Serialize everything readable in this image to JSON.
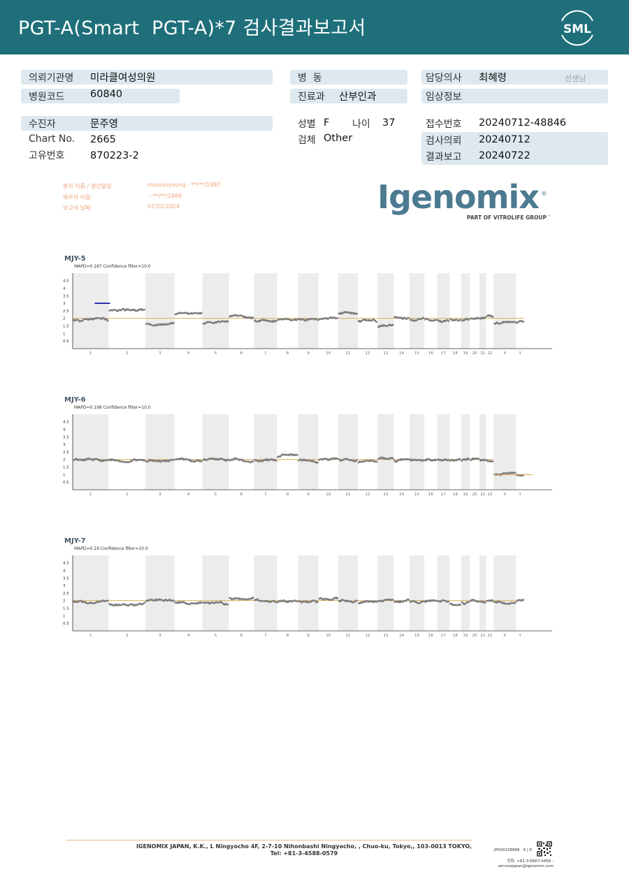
{
  "header": {
    "title": "PGT-A(Smart  PGT-A)*7 검사결과보고서",
    "logo_text": "SML",
    "bg_color": "#1e6f7a"
  },
  "info": {
    "institution_label": "의뢰기관명",
    "institution_value": "미라클여성의원",
    "hospital_code_label": "병원코드",
    "hospital_code_value": "60840",
    "ward_label": "병  동",
    "ward_value": "",
    "department_label": "진료과",
    "department_value": "산부인과",
    "doctor_label": "담당의사",
    "doctor_value": "최혜령",
    "doctor_suffix": "선생님",
    "clinical_label": "임상정보",
    "clinical_value": "",
    "patient_label": "수진자",
    "patient_value": "문주영",
    "chart_no_label": "Chart No.",
    "chart_no_value": "2665",
    "unique_no_label": "고유번호",
    "unique_no_value": "870223-2",
    "sex_label": "성별",
    "sex_value": "F",
    "age_label": "나이",
    "age_value": "37",
    "specimen_label": "검체",
    "specimen_value": "Other",
    "receipt_label": "접수번호",
    "receipt_value": "20240712-48846",
    "request_label": "검사의뢰",
    "request_value": "20240712",
    "report_label": "결과보고",
    "report_value": "20240722"
  },
  "stamp": {
    "patient_name_label": "환자 이름 / 생년월일",
    "partner_name_label": "배우자 이름:",
    "report_date_label": "보고서 날짜:",
    "patient_name_value": "moonjuyoung - **/**/1987",
    "partner_name_value": "- **/**/1988",
    "report_date_value": "07/22/2024"
  },
  "igenomix": {
    "brand": "Igenomix",
    "registered": "®",
    "tagline": "PART OF VITROLIFE GROUP",
    "trademark": "™"
  },
  "charts": {
    "y_ticks": [
      "4.5",
      "4",
      "3.5",
      "3",
      "2.5",
      "2",
      "1.5",
      "1",
      "0.5"
    ],
    "chromosomes": [
      "1",
      "2",
      "3",
      "4",
      "5",
      "6",
      "7",
      "8",
      "9",
      "10",
      "11",
      "12",
      "13",
      "14",
      "15",
      "16",
      "17",
      "18",
      "19",
      "20",
      "21",
      "22",
      "X",
      "Y"
    ],
    "color_points": "#7d7d7d",
    "color_baseline": "#d9a441",
    "color_gain": "#1a1aa8",
    "color_shade": "#ececec",
    "samples": [
      {
        "name": "MJY-5",
        "subtitle": "MAPD=0.187 Confidence filter=10.0",
        "levels": [
          1.9,
          2.5,
          1.65,
          2.25,
          1.7,
          2.1,
          1.85,
          1.9,
          1.95,
          1.95,
          2.3,
          1.8,
          1.45,
          2.1,
          1.9,
          1.95,
          1.85,
          1.95,
          1.85,
          1.95,
          1.95,
          2.2,
          1.65,
          1.7
        ]
      },
      {
        "name": "MJY-6",
        "subtitle": "MAPD=0.198 Confidence filter=10.0",
        "levels": [
          2.0,
          1.95,
          1.9,
          2.0,
          1.95,
          1.95,
          2.0,
          2.2,
          1.9,
          1.95,
          1.95,
          1.8,
          2.0,
          1.9,
          2.0,
          1.95,
          2.0,
          1.9,
          1.95,
          2.0,
          2.0,
          1.95,
          1.0,
          1.0
        ]
      },
      {
        "name": "MJY-7",
        "subtitle": "MAPD=0.19 Confidence filter=10.0",
        "levels": [
          1.95,
          1.8,
          1.95,
          1.9,
          1.85,
          2.2,
          2.0,
          1.9,
          2.0,
          2.15,
          1.95,
          1.85,
          1.95,
          1.95,
          1.95,
          1.9,
          1.95,
          1.8,
          1.9,
          2.0,
          1.95,
          2.0,
          1.9,
          1.95
        ]
      }
    ]
  },
  "footer": {
    "address": "IGENOMIX JAPAN, K.K., L Ningyocho 4F, 2-7-10 Nihonbashi Ningyocho, , Chuo-ku, Tokyo,, 103-0013 TOKYO, Tel: +81-3-4588-0579",
    "doc_code": "JP000158968",
    "page": "6 | 6",
    "fax": "전화: +81-3-6667-0456 -",
    "email": "servicejapan@igenomix.com"
  }
}
